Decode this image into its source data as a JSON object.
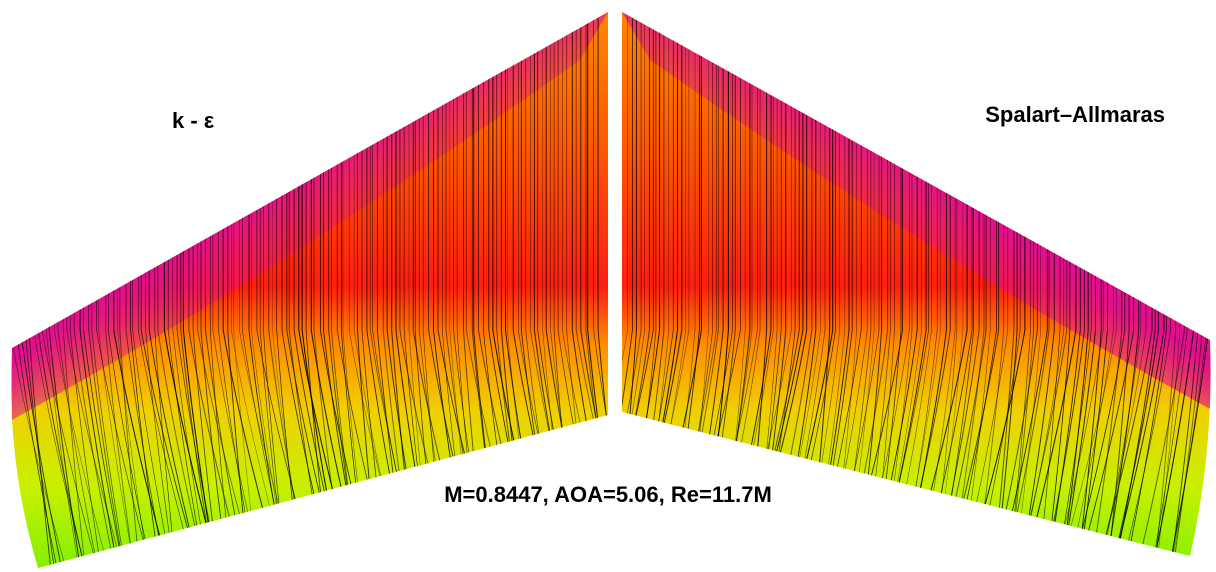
{
  "labels": {
    "left_model": "k - ε",
    "right_model": "Spalart–Allmaras",
    "conditions": "M=0.8447, AOA=5.06, Re=11.7M"
  }
}
